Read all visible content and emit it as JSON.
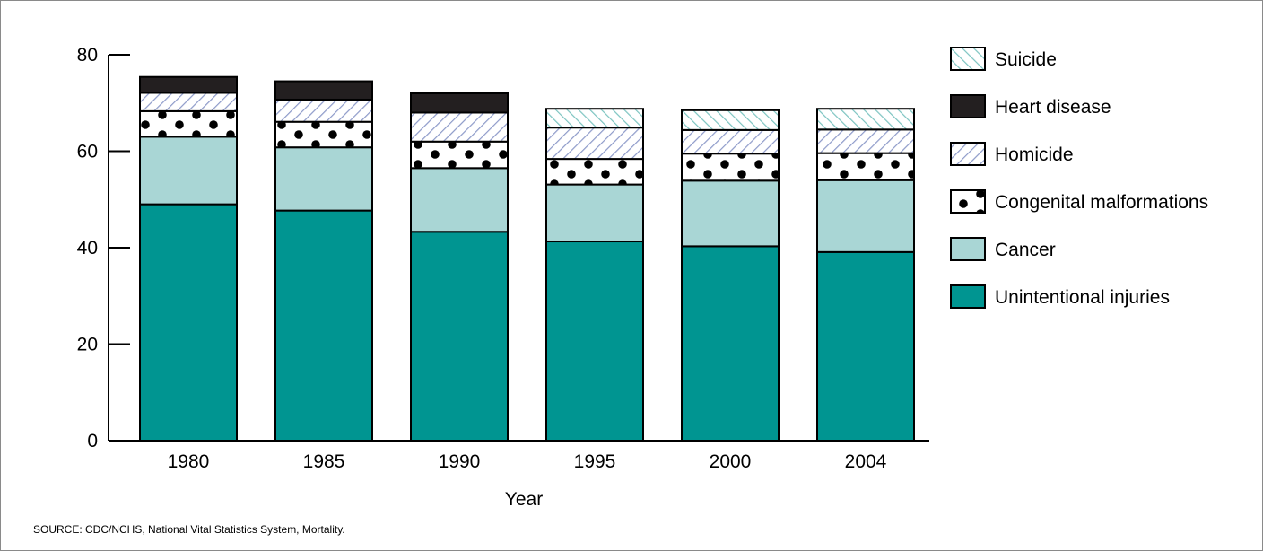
{
  "chart_data": {
    "type": "bar",
    "stacked": true,
    "categories": [
      "1980",
      "1985",
      "1990",
      "1995",
      "2000",
      "2004"
    ],
    "series": [
      {
        "name": "Unintentional injuries",
        "values": [
          49.0,
          47.7,
          43.3,
          41.3,
          40.3,
          39.1
        ]
      },
      {
        "name": "Cancer",
        "values": [
          14.0,
          13.1,
          13.2,
          11.8,
          13.6,
          14.9
        ]
      },
      {
        "name": "Congenital malformations",
        "values": [
          5.3,
          5.3,
          5.5,
          5.3,
          5.6,
          5.6
        ]
      },
      {
        "name": "Homicide",
        "values": [
          3.8,
          4.6,
          6.0,
          6.5,
          4.9,
          4.9
        ]
      },
      {
        "name": "Heart disease",
        "values": [
          3.3,
          3.8,
          4.0,
          0,
          0,
          0
        ]
      },
      {
        "name": "Suicide",
        "values": [
          0,
          0,
          0,
          3.9,
          4.1,
          4.3
        ]
      }
    ],
    "legend_order": [
      "Suicide",
      "Heart disease",
      "Homicide",
      "Congenital malformations",
      "Cancer",
      "Unintentional injuries"
    ],
    "xlabel": "Year",
    "ylabel": "",
    "yticks": [
      0,
      20,
      40,
      60,
      80
    ],
    "ylim": [
      0,
      80
    ],
    "grid": false,
    "legend_position": "right",
    "colors": {
      "Unintentional injuries": "#009591",
      "Cancer": "#a9d6d5",
      "Congenital malformations": "#ffffff",
      "Homicide": "#ffffff",
      "Heart disease": "#231f20",
      "Suicide": "#ffffff"
    },
    "patterns": {
      "Congenital malformations": "dots",
      "Homicide": "diagonal-hatch-blue",
      "Suicide": "diagonal-hatch-teal"
    }
  },
  "source": "SOURCE: CDC/NCHS, National Vital Statistics System, Mortality."
}
